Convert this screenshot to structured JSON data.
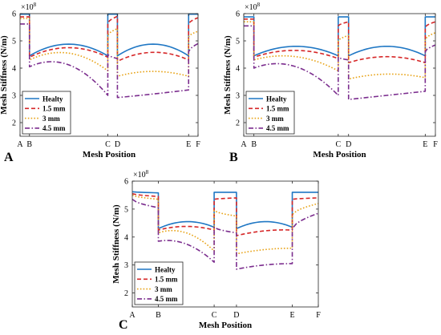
{
  "chart_data": [
    {
      "type": "line",
      "panel_label": "A",
      "xlabel": "Mesh Position",
      "ylabel": "Mesh Stiffness (N/m)",
      "y_multiplier": "×10",
      "y_exponent": "8",
      "ylim": [
        1.5,
        6
      ],
      "xlim": [
        0,
        1
      ],
      "y_ticks": [
        "2",
        "3",
        "4",
        "5",
        "6"
      ],
      "x_ticks": [
        {
          "label": "A",
          "x": 0.0
        },
        {
          "label": "B",
          "x": 0.053
        },
        {
          "label": "C",
          "x": 0.493
        },
        {
          "label": "D",
          "x": 0.547
        },
        {
          "label": "E",
          "x": 0.947
        },
        {
          "label": "F",
          "x": 1.0
        }
      ],
      "grid": false,
      "legend_position": "bottom-left",
      "series": [
        {
          "name": "Healty",
          "color": "#1f77c4",
          "dash": "solid",
          "segments": [
            {
              "type": "flat",
              "x0": 0.0,
              "x1": 0.053,
              "y": 5.98
            },
            {
              "type": "arc",
              "x0": 0.053,
              "x1": 0.493,
              "y0": 4.45,
              "ymid": 4.88,
              "y1": 4.45
            },
            {
              "type": "flat",
              "x0": 0.493,
              "x1": 0.547,
              "y": 5.98
            },
            {
              "type": "arc",
              "x0": 0.547,
              "x1": 0.947,
              "y0": 4.45,
              "ymid": 4.88,
              "y1": 4.45
            },
            {
              "type": "flat",
              "x0": 0.947,
              "x1": 1.0,
              "y": 5.98
            }
          ]
        },
        {
          "name": "1.5 mm",
          "color": "#d62728",
          "dash": "dashed",
          "segments": [
            {
              "type": "flat",
              "x0": 0.0,
              "x1": 0.053,
              "y": 5.88
            },
            {
              "type": "arc",
              "x0": 0.053,
              "x1": 0.493,
              "y0": 4.4,
              "ymid": 4.75,
              "y1": 4.4
            },
            {
              "type": "ramp",
              "x0": 0.493,
              "x1": 0.547,
              "y0": 5.65,
              "y1": 5.9
            },
            {
              "type": "arc",
              "x0": 0.547,
              "x1": 0.947,
              "y0": 4.25,
              "ymid": 4.58,
              "y1": 4.3
            },
            {
              "type": "ramp",
              "x0": 0.947,
              "x1": 1.0,
              "y0": 5.62,
              "y1": 5.85
            }
          ]
        },
        {
          "name": "3 mm",
          "color": "#e8a317",
          "dash": "dotted",
          "segments": [
            {
              "type": "flat",
              "x0": 0.0,
              "x1": 0.053,
              "y": 5.82
            },
            {
              "type": "arc",
              "x0": 0.053,
              "x1": 0.493,
              "y0": 4.3,
              "ymid": 4.55,
              "y1": 3.9
            },
            {
              "type": "ramp",
              "x0": 0.493,
              "x1": 0.547,
              "y0": 5.2,
              "y1": 5.45
            },
            {
              "type": "arc",
              "x0": 0.547,
              "x1": 0.947,
              "y0": 3.7,
              "ymid": 3.88,
              "y1": 3.7
            },
            {
              "type": "ramp",
              "x0": 0.947,
              "x1": 1.0,
              "y0": 5.15,
              "y1": 5.35
            }
          ]
        },
        {
          "name": "4.5 mm",
          "color": "#7b2d8e",
          "dash": "dashdot",
          "segments": [
            {
              "type": "flat",
              "x0": 0.0,
              "x1": 0.053,
              "y": 5.62
            },
            {
              "type": "arc",
              "x0": 0.053,
              "x1": 0.493,
              "y0": 4.05,
              "ymid": 4.12,
              "y1": 3.0
            },
            {
              "type": "ramp",
              "x0": 0.493,
              "x1": 0.547,
              "y0": 4.5,
              "y1": 4.35
            },
            {
              "type": "arc",
              "x0": 0.547,
              "x1": 0.947,
              "y0": 2.92,
              "ymid": 3.05,
              "y1": 3.2
            },
            {
              "type": "ramp",
              "x0": 0.947,
              "x1": 1.0,
              "y0": 4.6,
              "y1": 4.9
            }
          ]
        }
      ]
    },
    {
      "type": "line",
      "panel_label": "B",
      "xlabel": "Mesh Position",
      "ylabel": "Mesh Stiffness (N/m)",
      "y_multiplier": "×10",
      "y_exponent": "8",
      "ylim": [
        1.5,
        6
      ],
      "xlim": [
        0,
        1
      ],
      "y_ticks": [
        "2",
        "3",
        "4",
        "5",
        "6"
      ],
      "x_ticks": [
        {
          "label": "A",
          "x": 0.0
        },
        {
          "label": "B",
          "x": 0.053
        },
        {
          "label": "C",
          "x": 0.493
        },
        {
          "label": "D",
          "x": 0.547
        },
        {
          "label": "E",
          "x": 0.947
        },
        {
          "label": "F",
          "x": 1.0
        }
      ],
      "grid": false,
      "legend_position": "bottom-left",
      "series": [
        {
          "name": "Healty",
          "color": "#1f77c4",
          "dash": "solid",
          "segments": [
            {
              "type": "flat",
              "x0": 0.0,
              "x1": 0.053,
              "y": 5.88
            },
            {
              "type": "arc",
              "x0": 0.053,
              "x1": 0.493,
              "y0": 4.45,
              "ymid": 4.8,
              "y1": 4.45
            },
            {
              "type": "flat",
              "x0": 0.493,
              "x1": 0.547,
              "y": 5.88
            },
            {
              "type": "arc",
              "x0": 0.547,
              "x1": 0.947,
              "y0": 4.45,
              "ymid": 4.8,
              "y1": 4.45
            },
            {
              "type": "flat",
              "x0": 0.947,
              "x1": 1.0,
              "y": 5.88
            }
          ]
        },
        {
          "name": "1.5 mm",
          "color": "#d62728",
          "dash": "dashed",
          "segments": [
            {
              "type": "flat",
              "x0": 0.0,
              "x1": 0.053,
              "y": 5.8
            },
            {
              "type": "arc",
              "x0": 0.053,
              "x1": 0.493,
              "y0": 4.4,
              "ymid": 4.65,
              "y1": 4.35
            },
            {
              "type": "ramp",
              "x0": 0.493,
              "x1": 0.547,
              "y0": 5.55,
              "y1": 5.7
            },
            {
              "type": "arc",
              "x0": 0.547,
              "x1": 0.947,
              "y0": 4.2,
              "ymid": 4.42,
              "y1": 4.2
            },
            {
              "type": "ramp",
              "x0": 0.947,
              "x1": 1.0,
              "y0": 5.5,
              "y1": 5.7
            }
          ]
        },
        {
          "name": "3 mm",
          "color": "#e8a317",
          "dash": "dotted",
          "segments": [
            {
              "type": "flat",
              "x0": 0.0,
              "x1": 0.053,
              "y": 5.7
            },
            {
              "type": "arc",
              "x0": 0.053,
              "x1": 0.493,
              "y0": 4.3,
              "ymid": 4.42,
              "y1": 3.9
            },
            {
              "type": "ramp",
              "x0": 0.493,
              "x1": 0.547,
              "y0": 5.0,
              "y1": 5.2
            },
            {
              "type": "arc",
              "x0": 0.547,
              "x1": 0.947,
              "y0": 3.6,
              "ymid": 3.78,
              "y1": 3.65
            },
            {
              "type": "ramp",
              "x0": 0.947,
              "x1": 1.0,
              "y0": 5.05,
              "y1": 5.3
            }
          ]
        },
        {
          "name": "4.5 mm",
          "color": "#7b2d8e",
          "dash": "dashdot",
          "segments": [
            {
              "type": "flat",
              "x0": 0.0,
              "x1": 0.053,
              "y": 5.55
            },
            {
              "type": "arc",
              "x0": 0.053,
              "x1": 0.493,
              "y0": 4.0,
              "ymid": 4.05,
              "y1": 3.0
            },
            {
              "type": "ramp",
              "x0": 0.493,
              "x1": 0.547,
              "y0": 4.4,
              "y1": 4.3
            },
            {
              "type": "arc",
              "x0": 0.547,
              "x1": 0.947,
              "y0": 2.85,
              "ymid": 3.0,
              "y1": 3.15
            },
            {
              "type": "ramp",
              "x0": 0.947,
              "x1": 1.0,
              "y0": 4.6,
              "y1": 4.85
            }
          ]
        }
      ]
    },
    {
      "type": "line",
      "panel_label": "C",
      "xlabel": "Mesh Position",
      "ylabel": "Mesh Stiffness (N/m)",
      "y_multiplier": "×10",
      "y_exponent": "8",
      "ylim": [
        1.5,
        6
      ],
      "xlim": [
        0,
        1
      ],
      "y_ticks": [
        "2",
        "3",
        "4",
        "5",
        "6"
      ],
      "x_ticks": [
        {
          "label": "A",
          "x": 0.0
        },
        {
          "label": "B",
          "x": 0.14
        },
        {
          "label": "C",
          "x": 0.44
        },
        {
          "label": "D",
          "x": 0.56
        },
        {
          "label": "E",
          "x": 0.86
        },
        {
          "label": "F",
          "x": 1.0
        }
      ],
      "grid": false,
      "legend_position": "bottom-left",
      "series": [
        {
          "name": "Healty",
          "color": "#1f77c4",
          "dash": "solid",
          "segments": [
            {
              "type": "ramp",
              "x0": 0.0,
              "x1": 0.14,
              "y0": 5.62,
              "y1": 5.58
            },
            {
              "type": "arc",
              "x0": 0.14,
              "x1": 0.44,
              "y0": 4.3,
              "ymid": 4.55,
              "y1": 4.35
            },
            {
              "type": "ramp",
              "x0": 0.44,
              "x1": 0.56,
              "y0": 5.6,
              "y1": 5.6
            },
            {
              "type": "arc",
              "x0": 0.56,
              "x1": 0.86,
              "y0": 4.3,
              "ymid": 4.55,
              "y1": 4.35
            },
            {
              "type": "ramp",
              "x0": 0.86,
              "x1": 1.0,
              "y0": 5.6,
              "y1": 5.6
            }
          ]
        },
        {
          "name": "1.5 mm",
          "color": "#d62728",
          "dash": "dashed",
          "segments": [
            {
              "type": "ramp",
              "x0": 0.0,
              "x1": 0.14,
              "y0": 5.55,
              "y1": 5.45
            },
            {
              "type": "arc",
              "x0": 0.14,
              "x1": 0.44,
              "y0": 4.25,
              "ymid": 4.38,
              "y1": 4.25
            },
            {
              "type": "ramp",
              "x0": 0.44,
              "x1": 0.56,
              "y0": 5.35,
              "y1": 5.4
            },
            {
              "type": "arc",
              "x0": 0.56,
              "x1": 0.86,
              "y0": 4.05,
              "ymid": 4.22,
              "y1": 4.25
            },
            {
              "type": "ramp",
              "x0": 0.86,
              "x1": 1.0,
              "y0": 5.35,
              "y1": 5.4
            }
          ]
        },
        {
          "name": "3 mm",
          "color": "#e8a317",
          "dash": "dotted",
          "segments": [
            {
              "type": "ramp",
              "x0": 0.0,
              "x1": 0.14,
              "y0": 5.5,
              "y1": 5.35
            },
            {
              "type": "arc",
              "x0": 0.14,
              "x1": 0.44,
              "y0": 4.15,
              "ymid": 4.15,
              "y1": 3.5
            },
            {
              "type": "ramp",
              "x0": 0.44,
              "x1": 0.56,
              "y0": 4.95,
              "y1": 4.75
            },
            {
              "type": "arc",
              "x0": 0.56,
              "x1": 0.86,
              "y0": 3.4,
              "ymid": 3.55,
              "y1": 3.6
            },
            {
              "type": "ramp",
              "x0": 0.86,
              "x1": 1.0,
              "y0": 4.8,
              "y1": 5.2
            }
          ]
        },
        {
          "name": "4.5 mm",
          "color": "#7b2d8e",
          "dash": "dashdot",
          "segments": [
            {
              "type": "ramp",
              "x0": 0.0,
              "x1": 0.14,
              "y0": 5.35,
              "y1": 5.05
            },
            {
              "type": "arc",
              "x0": 0.14,
              "x1": 0.44,
              "y0": 3.85,
              "ymid": 3.75,
              "y1": 3.1
            },
            {
              "type": "ramp",
              "x0": 0.44,
              "x1": 0.56,
              "y0": 4.35,
              "y1": 4.15
            },
            {
              "type": "arc",
              "x0": 0.56,
              "x1": 0.86,
              "y0": 2.85,
              "ymid": 3.0,
              "y1": 3.05
            },
            {
              "type": "ramp",
              "x0": 0.86,
              "x1": 1.0,
              "y0": 4.3,
              "y1": 4.85
            }
          ]
        }
      ]
    }
  ]
}
